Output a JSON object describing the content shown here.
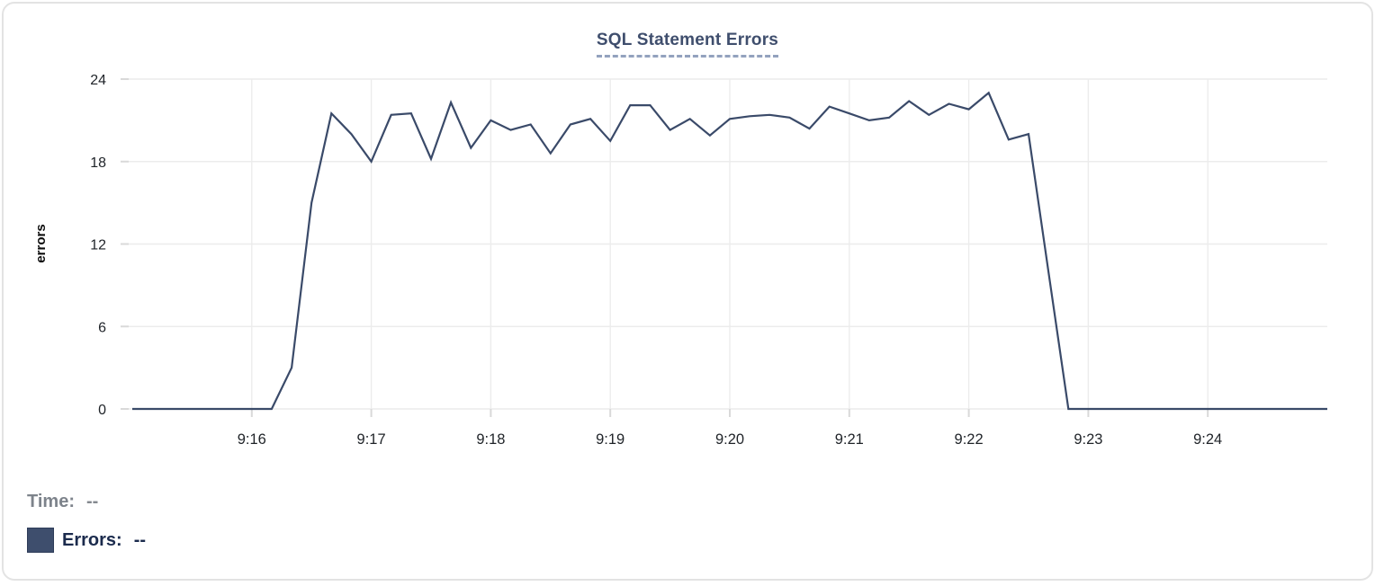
{
  "colors": {
    "line": "#3a4a69",
    "swatch": "#3e4e6d",
    "grid": "#ececec",
    "tick": "#d9d9d9",
    "axis_text": "#1f2328",
    "ylabel_text": "#0d0d0d",
    "title": "#3f4e6d",
    "title_underline": "#93a2be",
    "muted_text": "#7d838b",
    "dark_text": "#1b2b4d",
    "card_border": "#e3e3e3"
  },
  "chart_data": {
    "type": "line",
    "title": "SQL Statement Errors",
    "xlabel": "",
    "ylabel": "errors",
    "ylim": [
      0,
      24
    ],
    "y_ticks": [
      0,
      6,
      12,
      18,
      24
    ],
    "x_tick_labels": [
      "9:16",
      "9:17",
      "9:18",
      "9:19",
      "9:20",
      "9:21",
      "9:22",
      "9:23",
      "9:24"
    ],
    "x_start_time": "9:15:00",
    "x_end_time": "9:25:00",
    "interval_seconds": 10,
    "grid": true,
    "legend_position": "bottom-left",
    "series": [
      {
        "name": "Errors",
        "color": "#3a4a69",
        "values": [
          0,
          0,
          0,
          0,
          0,
          0,
          0,
          0,
          3,
          15,
          21.5,
          20,
          18,
          21.4,
          21.5,
          18.2,
          22.3,
          19,
          21,
          20.3,
          20.7,
          18.6,
          20.7,
          21.1,
          19.5,
          22.1,
          22.1,
          20.3,
          21.1,
          19.9,
          21.1,
          21.3,
          21.4,
          21.2,
          20.4,
          22,
          21.5,
          21,
          21.2,
          22.4,
          21.4,
          22.2,
          21.8,
          23,
          19.6,
          20,
          10,
          0,
          0,
          0,
          0,
          0,
          0,
          0,
          0,
          0,
          0,
          0,
          0,
          0,
          0
        ]
      }
    ]
  },
  "readout": {
    "time_label": "Time:",
    "time_value": "--",
    "errors_label": "Errors:",
    "errors_value": "--"
  }
}
